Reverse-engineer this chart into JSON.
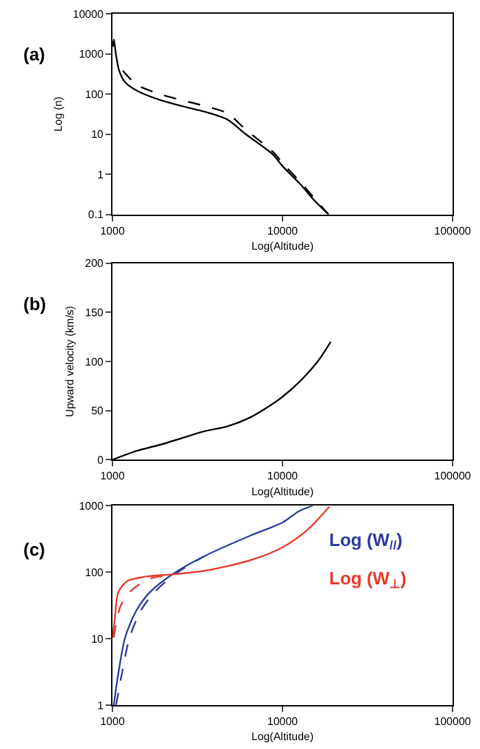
{
  "chart_data": [
    {
      "type": "line",
      "annotations": [
        "(a)"
      ],
      "xlabel": "Log(Altitude)",
      "ylabel": "Log (n)",
      "log": "xy",
      "xlim": [
        1000,
        100000
      ],
      "xticks": [
        1000,
        10000,
        100000
      ],
      "ylim": [
        0.1,
        10000
      ],
      "yticks": [
        0.1,
        1,
        10,
        100,
        1000,
        10000
      ],
      "marker": "none",
      "series": [
        {
          "color": "#000000",
          "line_style": "solid",
          "x": [
            1005,
            1019,
            1050,
            1097,
            1188,
            1387,
            1884,
            2562,
            3490,
            4745,
            6070,
            8790,
            10000,
            12700,
            15280,
            18620
          ],
          "values": [
            1500,
            2280,
            920,
            372,
            195,
            122,
            72,
            50,
            36,
            23,
            10,
            3.1,
            1.6,
            0.57,
            0.23,
            0.1
          ]
        },
        {
          "color": "#000000",
          "line_style": "dashed",
          "x": [
            1150,
            1390,
            1890,
            2560,
            3490,
            4745,
            6070,
            8790,
            10000,
            12700,
            15280,
            18620
          ],
          "values": [
            380,
            170,
            100,
            70,
            50,
            33,
            13,
            3.6,
            1.9,
            0.65,
            0.26,
            0.1
          ]
        }
      ]
    },
    {
      "type": "line",
      "annotations": [
        "(b)"
      ],
      "xlabel": "Log(Altitude)",
      "ylabel": "Upward velocity (km/s)",
      "log": "x",
      "xlim": [
        1000,
        100000
      ],
      "xticks": [
        1000,
        10000,
        100000
      ],
      "ylim": [
        0,
        200
      ],
      "yticks": [
        0,
        50,
        100,
        150,
        200
      ],
      "marker": "none",
      "series": [
        {
          "color": "#000000",
          "line_style": "solid",
          "x": [
            1000,
            1387,
            1884,
            2562,
            3490,
            4745,
            6456,
            8790,
            10000,
            12700,
            16270,
            19190
          ],
          "values": [
            0,
            9,
            15,
            22,
            29,
            34,
            43,
            57,
            64,
            80,
            101,
            120
          ]
        }
      ]
    },
    {
      "type": "line",
      "annotations": [
        "(c)"
      ],
      "xlabel": "Log(Altitude)",
      "log": "xy",
      "xlim": [
        1000,
        100000
      ],
      "xticks": [
        1000,
        10000,
        100000
      ],
      "ylim": [
        1,
        1000
      ],
      "yticks": [
        1,
        10,
        100,
        1000
      ],
      "marker": "none",
      "series": [
        {
          "name": "Log (W$_{//}$)",
          "color": "#2b3a9c",
          "line_style": "solid",
          "x": [
            1018,
            1083,
            1187,
            1383,
            1662,
            2253,
            3459,
            6380,
            10000,
            12500,
            15030
          ],
          "values": [
            1,
            3,
            10.4,
            26.6,
            50,
            93,
            174,
            351,
            561,
            830,
            1000
          ]
        },
        {
          "color": "#2b3a9c",
          "line_style": "dashed",
          "x": [
            1050,
            1137,
            1262,
            1470,
            1765,
            2325,
            3459
          ],
          "values": [
            1,
            3,
            10.4,
            26.6,
            50,
            93,
            174
          ]
        },
        {
          "name": "Log (W$_{⊥}$)",
          "color": "#e8382a",
          "line_style": "solid",
          "x": [
            1000,
            1031,
            1083,
            1224,
            1563,
            2253,
            3459,
            6380,
            10000,
            14140,
            18830
          ],
          "values": [
            10.4,
            19.5,
            50,
            74,
            86,
            93,
            105,
            150,
            237,
            444,
            970
          ]
        },
        {
          "color": "#e8382a",
          "line_style": "dashed",
          "x": [
            1018,
            1116,
            1300,
            1662,
            2253
          ],
          "values": [
            10.4,
            31,
            54,
            80,
            91
          ]
        }
      ]
    }
  ]
}
